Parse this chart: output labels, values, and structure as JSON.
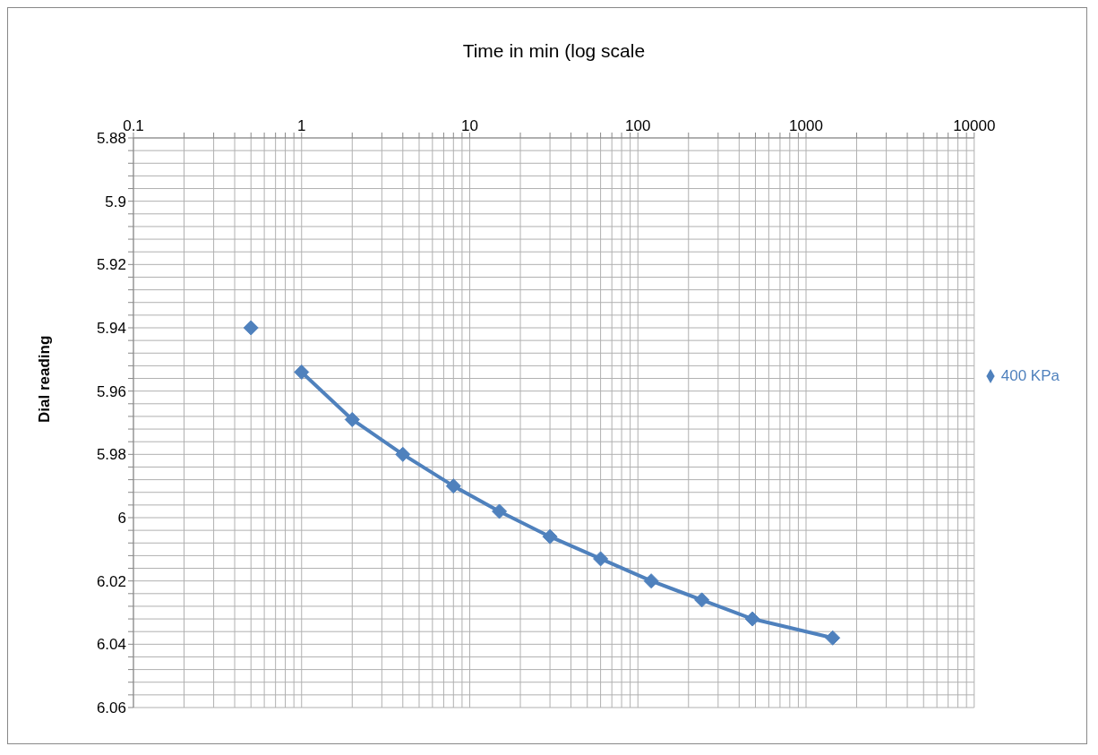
{
  "chart_data": {
    "type": "line",
    "xlabel": "Time in min (log scale",
    "ylabel": "Dial reading",
    "series": [
      {
        "name": "400 KPa",
        "color": "#4f81bd",
        "x": [
          1,
          2,
          4,
          8,
          15,
          30,
          60,
          120,
          240,
          480,
          1440
        ],
        "values": [
          5.954,
          5.969,
          5.98,
          5.99,
          5.998,
          6.006,
          6.013,
          6.02,
          6.026,
          6.032,
          6.038
        ]
      },
      {
        "type": "scatter",
        "color": "#4f81bd",
        "x": [
          0.5
        ],
        "values": [
          5.94
        ]
      }
    ],
    "log": "x",
    "xlim": [
      0.1,
      10000
    ],
    "xticks": [
      0.1,
      {
        "value": 0.2,
        "label": null
      },
      {
        "value": 0.3,
        "label": null
      },
      {
        "value": 0.4,
        "label": null
      },
      {
        "value": 0.5,
        "label": null
      },
      {
        "value": 0.6,
        "label": null
      },
      {
        "value": 0.7,
        "label": null
      },
      {
        "value": 0.8,
        "label": null
      },
      {
        "value": 0.9,
        "label": null
      },
      1,
      {
        "value": 2,
        "label": null
      },
      {
        "value": 3,
        "label": null
      },
      {
        "value": 4,
        "label": null
      },
      {
        "value": 5,
        "label": null
      },
      {
        "value": 6,
        "label": null
      },
      {
        "value": 7,
        "label": null
      },
      {
        "value": 8,
        "label": null
      },
      {
        "value": 9,
        "label": null
      },
      10,
      {
        "value": 20,
        "label": null
      },
      {
        "value": 30,
        "label": null
      },
      {
        "value": 40,
        "label": null
      },
      {
        "value": 50,
        "label": null
      },
      {
        "value": 60,
        "label": null
      },
      {
        "value": 70,
        "label": null
      },
      {
        "value": 80,
        "label": null
      },
      {
        "value": 90,
        "label": null
      },
      100,
      {
        "value": 200,
        "label": null
      },
      {
        "value": 300,
        "label": null
      },
      {
        "value": 400,
        "label": null
      },
      {
        "value": 500,
        "label": null
      },
      {
        "value": 600,
        "label": null
      },
      {
        "value": 700,
        "label": null
      },
      {
        "value": 800,
        "label": null
      },
      {
        "value": 900,
        "label": null
      },
      1000,
      {
        "value": 2000,
        "label": null
      },
      {
        "value": 3000,
        "label": null
      },
      {
        "value": 4000,
        "label": null
      },
      {
        "value": 5000,
        "label": null
      },
      {
        "value": 6000,
        "label": null
      },
      {
        "value": 7000,
        "label": null
      },
      {
        "value": 8000,
        "label": null
      },
      {
        "value": 9000,
        "label": null
      },
      10000
    ],
    "ylim": [
      6.06,
      5.88
    ],
    "yticks": [
      5.88,
      {
        "value": 5.884,
        "label": null
      },
      {
        "value": 5.888,
        "label": null
      },
      {
        "value": 5.892,
        "label": null
      },
      {
        "value": 5.896,
        "label": null
      },
      5.9,
      {
        "value": 5.904,
        "label": null
      },
      {
        "value": 5.908,
        "label": null
      },
      {
        "value": 5.912,
        "label": null
      },
      {
        "value": 5.916,
        "label": null
      },
      5.92,
      {
        "value": 5.924,
        "label": null
      },
      {
        "value": 5.928,
        "label": null
      },
      {
        "value": 5.932,
        "label": null
      },
      {
        "value": 5.936,
        "label": null
      },
      5.94,
      {
        "value": 5.944,
        "label": null
      },
      {
        "value": 5.948,
        "label": null
      },
      {
        "value": 5.952,
        "label": null
      },
      {
        "value": 5.956,
        "label": null
      },
      5.96,
      {
        "value": 5.964,
        "label": null
      },
      {
        "value": 5.968,
        "label": null
      },
      {
        "value": 5.972,
        "label": null
      },
      {
        "value": 5.976,
        "label": null
      },
      5.98,
      {
        "value": 5.984,
        "label": null
      },
      {
        "value": 5.988,
        "label": null
      },
      {
        "value": 5.992,
        "label": null
      },
      {
        "value": 5.996,
        "label": null
      },
      6,
      {
        "value": 6.004,
        "label": null
      },
      {
        "value": 6.008,
        "label": null
      },
      {
        "value": 6.012,
        "label": null
      },
      {
        "value": 6.016,
        "label": null
      },
      6.02,
      {
        "value": 6.024,
        "label": null
      },
      {
        "value": 6.028,
        "label": null
      },
      {
        "value": 6.032,
        "label": null
      },
      {
        "value": 6.036,
        "label": null
      },
      6.04,
      {
        "value": 6.044,
        "label": null
      },
      {
        "value": 6.048,
        "label": null
      },
      {
        "value": 6.052,
        "label": null
      },
      {
        "value": 6.056,
        "label": null
      },
      6.06
    ],
    "grid": true,
    "legend": "right",
    "marker": "diamond",
    "line_style": "solid"
  }
}
